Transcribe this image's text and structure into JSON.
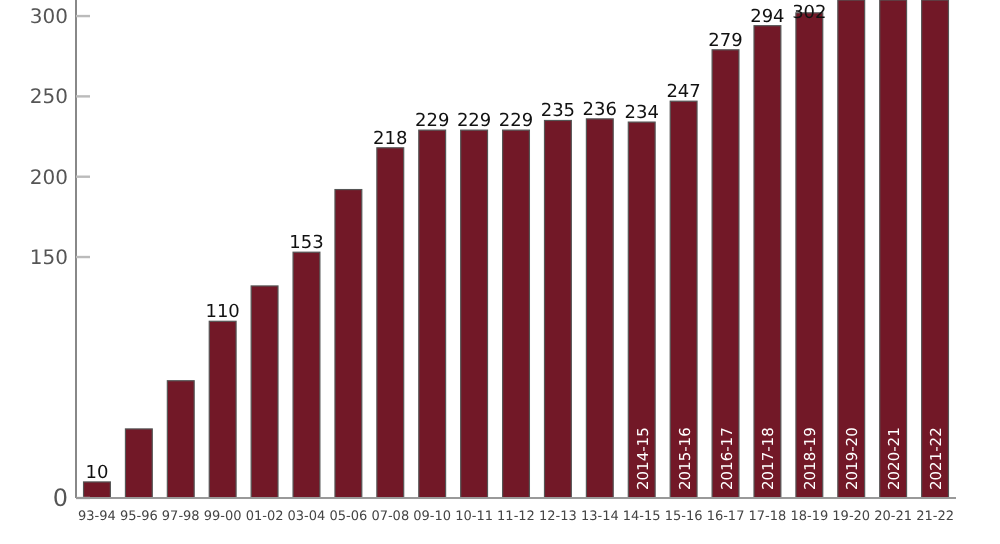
{
  "chart_data": {
    "type": "bar",
    "categories": [
      "93-94",
      "95-96",
      "97-98",
      "99-00",
      "01-02",
      "03-04",
      "05-06",
      "07-08",
      "09-10",
      "10-11",
      "11-12",
      "12-13",
      "13-14",
      "14-15",
      "15-16",
      "16-17",
      "17-18",
      "18-19",
      "19-20",
      "20-21",
      "21-22"
    ],
    "values": [
      10,
      43,
      73,
      110,
      132,
      153,
      192,
      218,
      229,
      229,
      229,
      235,
      236,
      234,
      247,
      279,
      294,
      302,
      310,
      310,
      310
    ],
    "value_labels": [
      "10",
      null,
      null,
      "110",
      null,
      "153",
      null,
      "218",
      "229",
      "229",
      "229",
      "235",
      "236",
      "234",
      "247",
      "279",
      "294",
      "302",
      null,
      null,
      null
    ],
    "color": "#721827",
    "ylim": [
      0,
      310
    ],
    "yticks": [
      0,
      150,
      200,
      250,
      300
    ],
    "grid": false,
    "annotations": [
      "2014-15",
      "2015-16",
      "2016-17",
      "2017-18",
      "2018-19",
      "2019-20",
      "2020-21",
      "2021-22"
    ]
  }
}
